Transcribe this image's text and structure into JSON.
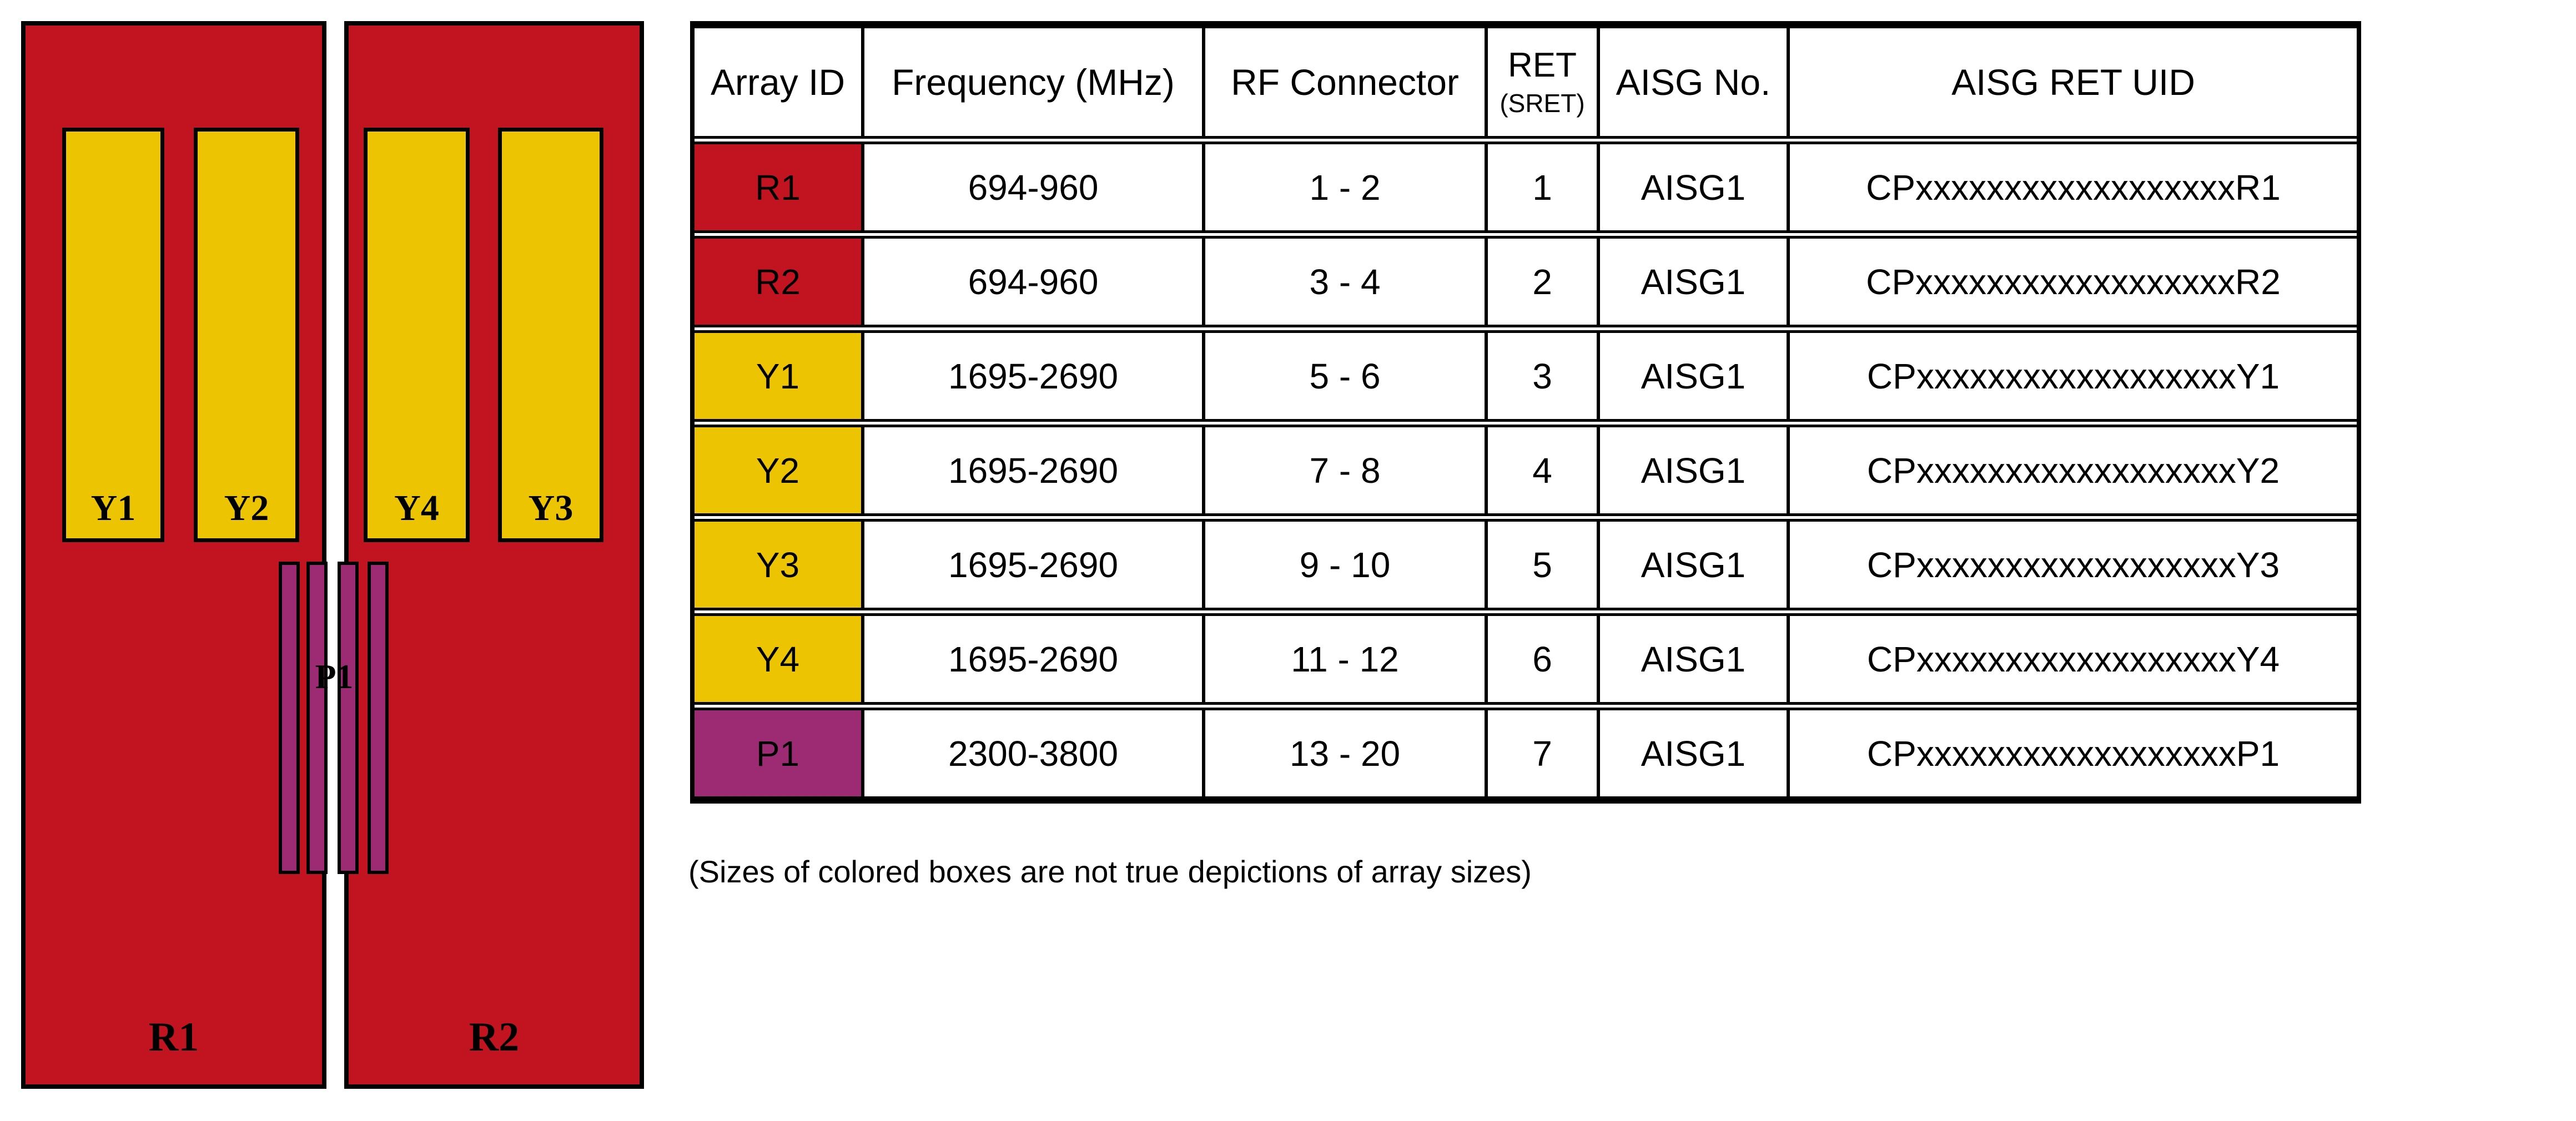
{
  "colors": {
    "red": "#C11420",
    "yellow": "#ECC402",
    "purple": "#9C2B74",
    "line": "#000000"
  },
  "diagram": {
    "panels": [
      {
        "label": "R1"
      },
      {
        "label": "R2"
      }
    ],
    "arrays": [
      {
        "label": "Y1"
      },
      {
        "label": "Y2"
      },
      {
        "label": "Y4"
      },
      {
        "label": "Y3"
      }
    ],
    "p_array_label": "P1"
  },
  "table": {
    "headers": {
      "array_id": "Array ID",
      "frequency": "Frequency (MHz)",
      "rf_connector": "RF Connector",
      "ret": "RET",
      "ret_sub": "(SRET)",
      "aisg_no": "AISG No.",
      "aisg_ret_uid": "AISG RET UID"
    },
    "rows": [
      {
        "array_id": "R1",
        "color": "red",
        "frequency": "694-960",
        "rf_connector": "1 - 2",
        "ret": "1",
        "aisg_no": "AISG1",
        "aisg_ret_uid": "CPxxxxxxxxxxxxxxxxxxR1"
      },
      {
        "array_id": "R2",
        "color": "red",
        "frequency": "694-960",
        "rf_connector": "3 - 4",
        "ret": "2",
        "aisg_no": "AISG1",
        "aisg_ret_uid": "CPxxxxxxxxxxxxxxxxxxR2"
      },
      {
        "array_id": "Y1",
        "color": "yellow",
        "frequency": "1695-2690",
        "rf_connector": "5 - 6",
        "ret": "3",
        "aisg_no": "AISG1",
        "aisg_ret_uid": "CPxxxxxxxxxxxxxxxxxxY1"
      },
      {
        "array_id": "Y2",
        "color": "yellow",
        "frequency": "1695-2690",
        "rf_connector": "7 - 8",
        "ret": "4",
        "aisg_no": "AISG1",
        "aisg_ret_uid": "CPxxxxxxxxxxxxxxxxxxY2"
      },
      {
        "array_id": "Y3",
        "color": "yellow",
        "frequency": "1695-2690",
        "rf_connector": "9 - 10",
        "ret": "5",
        "aisg_no": "AISG1",
        "aisg_ret_uid": "CPxxxxxxxxxxxxxxxxxxY3"
      },
      {
        "array_id": "Y4",
        "color": "yellow",
        "frequency": "1695-2690",
        "rf_connector": "11 - 12",
        "ret": "6",
        "aisg_no": "AISG1",
        "aisg_ret_uid": "CPxxxxxxxxxxxxxxxxxxY4"
      },
      {
        "array_id": "P1",
        "color": "purple",
        "frequency": "2300-3800",
        "rf_connector": "13 - 20",
        "ret": "7",
        "aisg_no": "AISG1",
        "aisg_ret_uid": "CPxxxxxxxxxxxxxxxxxxP1"
      }
    ]
  },
  "footnote": "(Sizes of colored boxes are not true depictions of array sizes)"
}
